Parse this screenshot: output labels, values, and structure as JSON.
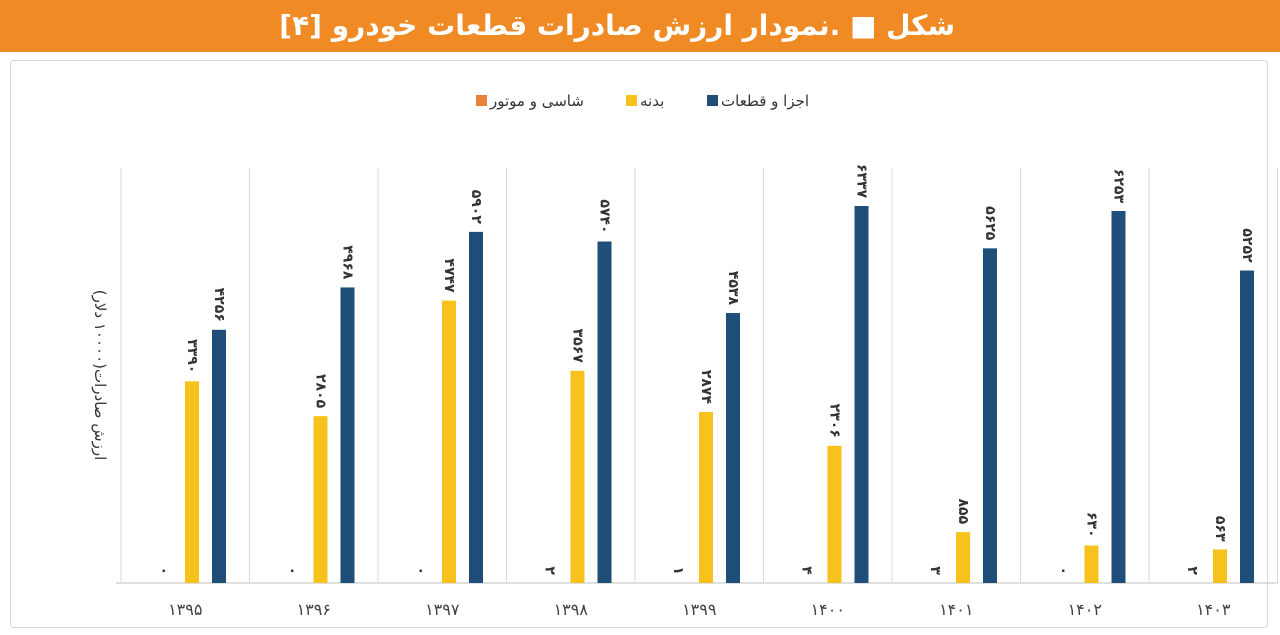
{
  "header": {
    "title": "شکل ■ .نمودار ارزش صادرات قطعات خودرو [۴]"
  },
  "colors": {
    "header_bg": "#f08a24",
    "series_engine": "#e9833c",
    "series_body": "#f6c21b",
    "series_parts": "#1f4e79"
  },
  "chart_data": {
    "type": "bar",
    "ylabel": "ارزش صادرات(۱۰۰۰۰ دلار)",
    "legend_position": "top-center",
    "grid": false,
    "ylim": [
      0,
      7000
    ],
    "categories": [
      "۱۳۹۵",
      "۱۳۹۶",
      "۱۳۹۷",
      "۱۳۹۸",
      "۱۳۹۹",
      "۱۴۰۰",
      "۱۴۰۱",
      "۱۴۰۲",
      "۱۴۰۳"
    ],
    "series": [
      {
        "name": "شاسی و موتور",
        "color": "#e9833c",
        "values": [
          0,
          0,
          0,
          2,
          1,
          4,
          3,
          0,
          2
        ],
        "labels": [
          "۰",
          "۰",
          "۰",
          "۲",
          "۱",
          "۴",
          "۳",
          "۰",
          "۲"
        ]
      },
      {
        "name": "بدنه",
        "color": "#f6c21b",
        "values": [
          3390,
          2805,
          4747,
          3567,
          2874,
          2306,
          855,
          630,
          563
        ],
        "labels": [
          "۳۳۹۰",
          "۲۸۰۵",
          "۴۷۴۷",
          "۳۵۶۷",
          "۲۸۷۴",
          "۲۳۰۶",
          "۸۵۵",
          "۶۳۰",
          "۵۶۳"
        ]
      },
      {
        "name": "اجزا و قطعات",
        "color": "#1f4e79",
        "values": [
          4256,
          4968,
          5902,
          5740,
          4538,
          6337,
          5625,
          6253,
          5252
        ],
        "labels": [
          "۴۲۵۶",
          "۴۹۶۸",
          "۵۹۰۲",
          "۵۷۴۰",
          "۴۵۳۸",
          "۶۳۳۷",
          "۵۶۲۵",
          "۶۲۵۳",
          "۵۲۵۲"
        ]
      }
    ]
  }
}
